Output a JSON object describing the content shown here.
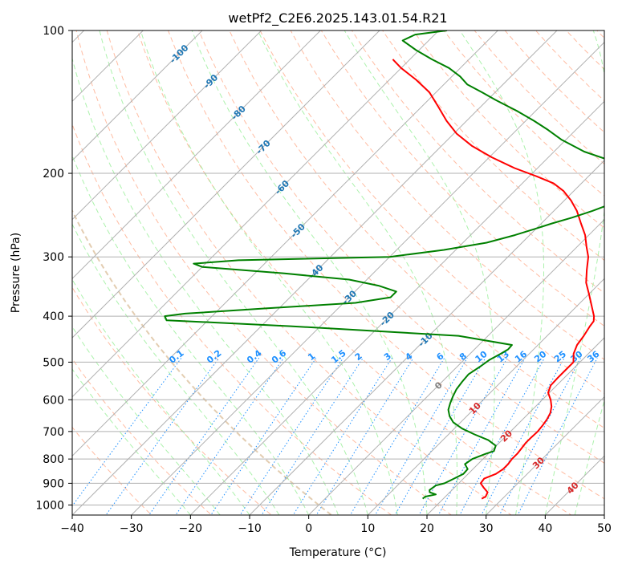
{
  "chart_data": {
    "type": "line",
    "title": "wetPf2_C2E6.2025.143.01.54.R21",
    "xlabel": "Temperature (°C)",
    "ylabel": "Pressure (hPa)",
    "xlim": [
      -40,
      50
    ],
    "ylim": [
      1050,
      100
    ],
    "y_scale": "log",
    "skew": true,
    "x_ticks": [
      -40,
      -30,
      -20,
      -10,
      0,
      10,
      20,
      30,
      40,
      50
    ],
    "x_tick_labels": [
      "−40",
      "−30",
      "−20",
      "−10",
      "0",
      "10",
      "20",
      "30",
      "40",
      "50"
    ],
    "y_ticks": [
      100,
      200,
      300,
      400,
      500,
      600,
      700,
      800,
      900,
      1000
    ],
    "y_tick_labels": [
      "100",
      "200",
      "300",
      "400",
      "500",
      "600",
      "700",
      "800",
      "900",
      "1000"
    ],
    "grid": true,
    "colors": {
      "temperature": "#ff0000",
      "dewpoint": "#008000",
      "isotherm_labels": "#1f77b4",
      "mixing_labels": "#1e90ff",
      "warm_labels": "#d62728",
      "zero_label": "#808080",
      "dry_adiabat": "#ffa07a",
      "moist_adiabat": "#90ee90",
      "mixing_line": "#1e90ff"
    },
    "series": [
      {
        "key": "temperature",
        "points": [
          [
            26.5,
            970
          ],
          [
            26.8,
            960
          ],
          [
            26.4,
            940
          ],
          [
            25,
            920
          ],
          [
            23.7,
            900
          ],
          [
            23.5,
            880
          ],
          [
            24.7,
            860
          ],
          [
            25.1,
            840
          ],
          [
            25.1,
            820
          ],
          [
            24.9,
            800
          ],
          [
            24.9,
            780
          ],
          [
            24.7,
            760
          ],
          [
            24.5,
            740
          ],
          [
            24.5,
            720
          ],
          [
            24.6,
            700
          ],
          [
            24.4,
            680
          ],
          [
            24.1,
            660
          ],
          [
            23.6,
            640
          ],
          [
            22.7,
            620
          ],
          [
            21.4,
            600
          ],
          [
            19.8,
            580
          ],
          [
            19,
            560
          ],
          [
            18.9,
            540
          ],
          [
            18.9,
            520
          ],
          [
            18.9,
            500
          ],
          [
            17.5,
            480
          ],
          [
            16.6,
            460
          ],
          [
            16.2,
            440
          ],
          [
            15.6,
            420
          ],
          [
            15.4,
            410
          ],
          [
            14.6,
            400
          ],
          [
            12.4,
            380
          ],
          [
            10.1,
            360
          ],
          [
            7.6,
            340
          ],
          [
            5.6,
            320
          ],
          [
            3.6,
            300
          ],
          [
            1.5,
            285
          ],
          [
            -0.6,
            270
          ],
          [
            -3.3,
            255
          ],
          [
            -6.1,
            240
          ],
          [
            -8.9,
            228
          ],
          [
            -11.7,
            218
          ],
          [
            -14.7,
            210
          ],
          [
            -18.7,
            203
          ],
          [
            -23.9,
            195
          ],
          [
            -29.6,
            185
          ],
          [
            -34.9,
            175
          ],
          [
            -39.5,
            165
          ],
          [
            -43.4,
            155
          ],
          [
            -47.1,
            145
          ],
          [
            -51.1,
            135
          ],
          [
            -55.5,
            127
          ],
          [
            -60,
            120
          ],
          [
            -62.9,
            115
          ]
        ]
      },
      {
        "key": "dewpoint",
        "points": [
          [
            16.5,
            970
          ],
          [
            16.6,
            960
          ],
          [
            18,
            950
          ],
          [
            16.6,
            940
          ],
          [
            16.2,
            930
          ],
          [
            16.5,
            910
          ],
          [
            17.6,
            900
          ],
          [
            18.4,
            880
          ],
          [
            19.2,
            860
          ],
          [
            19.1,
            840
          ],
          [
            17.8,
            820
          ],
          [
            18.2,
            800
          ],
          [
            19.6,
            780
          ],
          [
            20.5,
            770
          ],
          [
            19.9,
            750
          ],
          [
            17.7,
            730
          ],
          [
            14.4,
            710
          ],
          [
            11.3,
            690
          ],
          [
            8.8,
            670
          ],
          [
            7.1,
            650
          ],
          [
            5.8,
            630
          ],
          [
            5,
            610
          ],
          [
            4.3,
            590
          ],
          [
            3.7,
            570
          ],
          [
            3.4,
            550
          ],
          [
            3.2,
            530
          ],
          [
            3.9,
            510
          ],
          [
            4.3,
            495
          ],
          [
            5.2,
            480
          ],
          [
            5.7,
            470
          ],
          [
            5.6,
            460
          ],
          [
            -5,
            440
          ],
          [
            -35,
            420
          ],
          [
            -57,
            408
          ],
          [
            -58,
            400
          ],
          [
            -55,
            395
          ],
          [
            -42,
            385
          ],
          [
            -28,
            375
          ],
          [
            -23,
            365
          ],
          [
            -23,
            355
          ],
          [
            -27,
            345
          ],
          [
            -33,
            335
          ],
          [
            -45,
            325
          ],
          [
            -60,
            315
          ],
          [
            -62,
            310
          ],
          [
            -55,
            305
          ],
          [
            -30,
            300
          ],
          [
            -22,
            290
          ],
          [
            -16,
            280
          ],
          [
            -12.5,
            270
          ],
          [
            -10.2,
            262
          ],
          [
            -8.2,
            255
          ],
          [
            -5.8,
            248
          ],
          [
            -3.5,
            240
          ],
          [
            -1,
            230
          ],
          [
            0.5,
            220
          ],
          [
            1.9,
            212
          ],
          [
            1.7,
            208
          ],
          [
            -1.8,
            200
          ],
          [
            -7.5,
            190
          ],
          [
            -14.9,
            180
          ],
          [
            -20.7,
            170
          ],
          [
            -24.7,
            162
          ],
          [
            -28.6,
            155
          ],
          [
            -33,
            148
          ],
          [
            -38.7,
            140
          ],
          [
            -42.2,
            135
          ],
          [
            -46,
            130
          ],
          [
            -48.6,
            125
          ],
          [
            -51.9,
            120
          ],
          [
            -56.3,
            115
          ],
          [
            -60.5,
            110
          ],
          [
            -64.4,
            105
          ],
          [
            -63.3,
            102
          ],
          [
            -58.6,
            100
          ]
        ]
      }
    ],
    "isotherm_labels": [
      {
        "text": "-100",
        "t": -100,
        "p": 112
      },
      {
        "text": "-90",
        "t": -90,
        "p": 128
      },
      {
        "text": "-80",
        "t": -80,
        "p": 149
      },
      {
        "text": "-70",
        "t": -70,
        "p": 176
      },
      {
        "text": "-60",
        "t": -60,
        "p": 214
      },
      {
        "text": "-50",
        "t": -50,
        "p": 264
      },
      {
        "text": "-40",
        "t": -40,
        "p": 322
      },
      {
        "text": "-30",
        "t": -30,
        "p": 365
      },
      {
        "text": "-20",
        "t": -20,
        "p": 405
      },
      {
        "text": "-10",
        "t": -10,
        "p": 448
      },
      {
        "text": "0",
        "t": 0,
        "p": 560,
        "color": "zero_label"
      },
      {
        "text": "10",
        "t": 10,
        "p": 625,
        "color": "warm_labels"
      },
      {
        "text": "20",
        "t": 20,
        "p": 715,
        "color": "warm_labels"
      },
      {
        "text": "30",
        "t": 30,
        "p": 815,
        "color": "warm_labels"
      },
      {
        "text": "40",
        "t": 40,
        "p": 920,
        "color": "warm_labels"
      }
    ],
    "mixing_ratio_labels": [
      "0.1",
      "0.2",
      "0.4",
      "0.6",
      "1",
      "1.5",
      "2",
      "3",
      "4",
      "6",
      "8",
      "10",
      "13",
      "16",
      "20",
      "25",
      "30",
      "36"
    ],
    "mixing_ratio_values": [
      0.1,
      0.2,
      0.4,
      0.6,
      1,
      1.5,
      2,
      3,
      4,
      6,
      8,
      10,
      13,
      16,
      20,
      25,
      30,
      36
    ]
  }
}
